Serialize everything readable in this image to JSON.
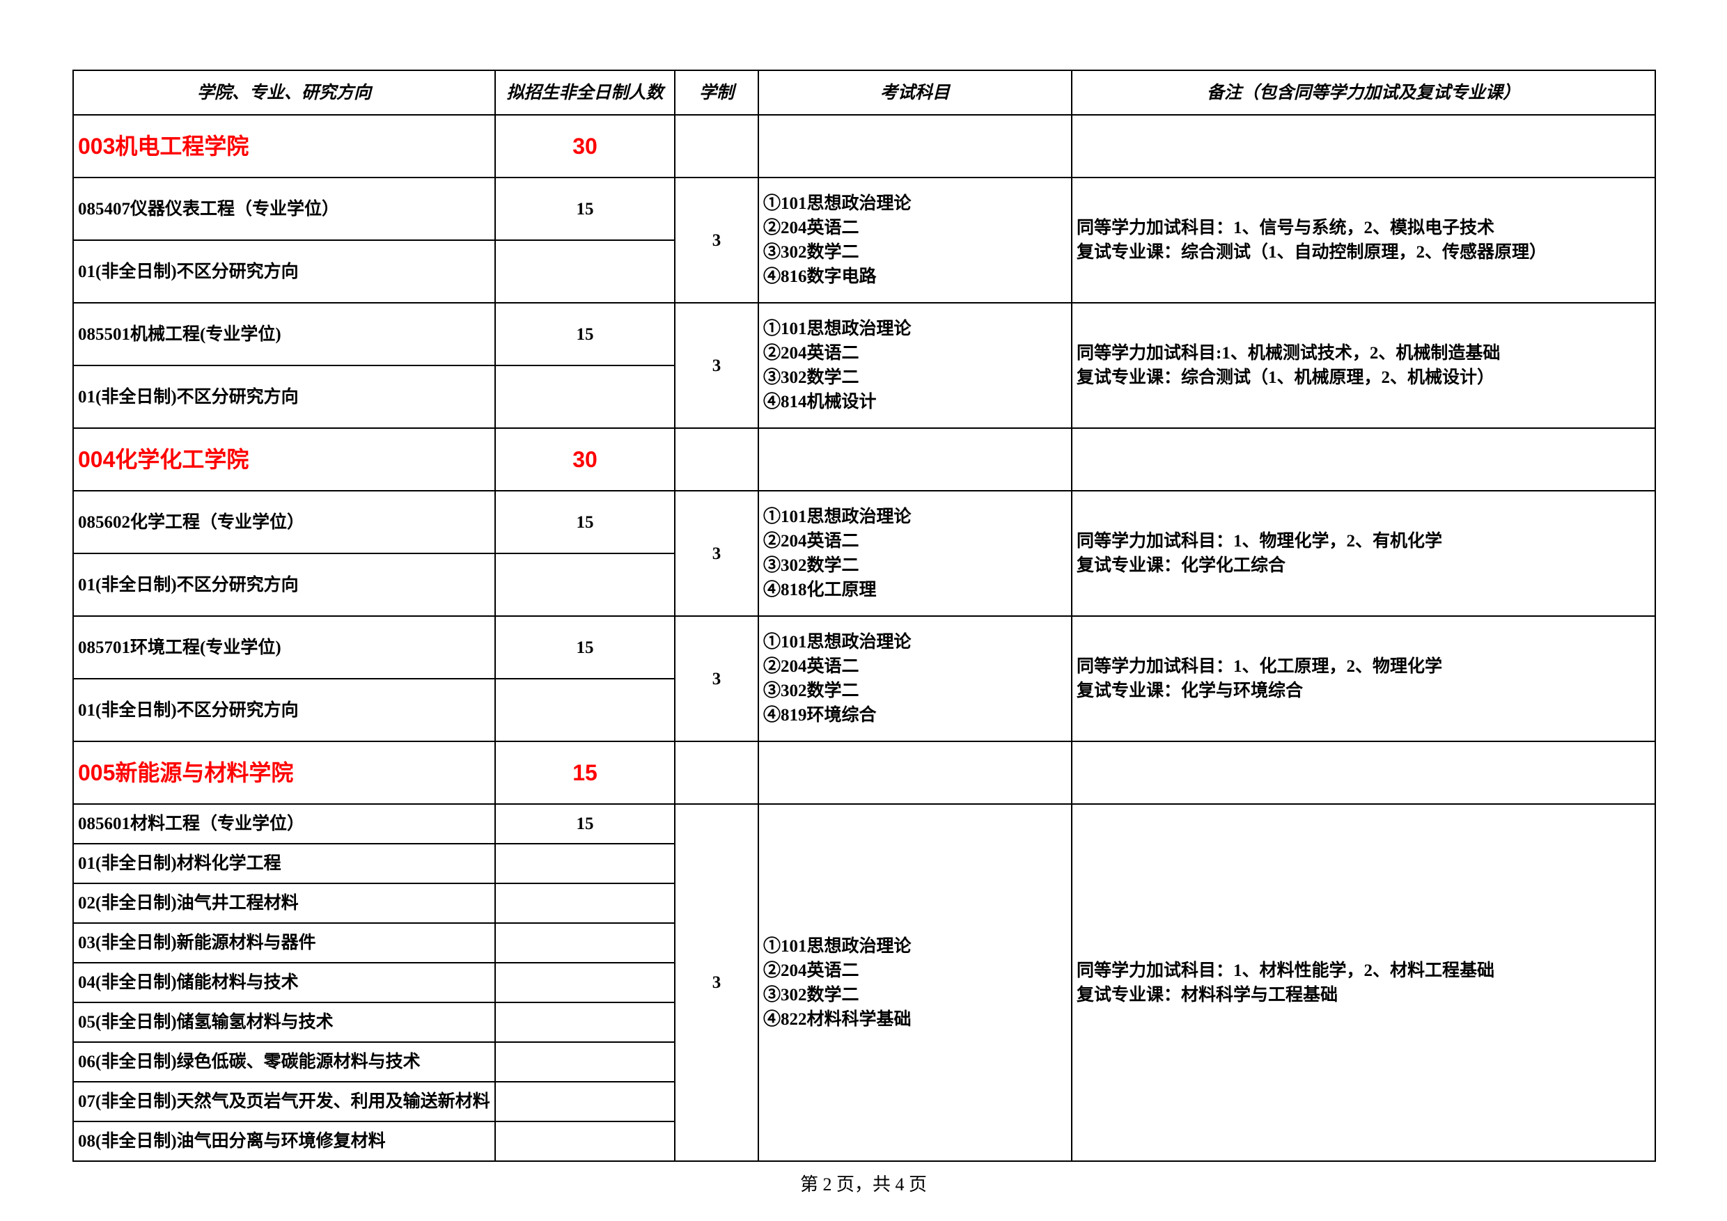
{
  "table": {
    "border_color": "#000000",
    "accent_color": "#ff0000",
    "background_color": "#ffffff",
    "headers": {
      "c1": "学院、专业、研究方向",
      "c2": "拟招生非全日制人数",
      "c3": "学制",
      "c4": "考试科目",
      "c5": "备注（包含同等学力加试及复试专业课）"
    },
    "colleges": [
      {
        "name": "003机电工程学院",
        "count": "30",
        "programs": [
          {
            "title": "085407仪器仪表工程（专业学位）",
            "count": "15",
            "duration": "3",
            "exam": "①101思想政治理论\n②204英语二\n③302数学二\n④816数字电路",
            "note": "同等学力加试科目：1、信号与系统，2、模拟电子技术\n复试专业课：综合测试（1、自动控制原理，2、传感器原理）",
            "directions": [
              "01(非全日制)不区分研究方向"
            ]
          },
          {
            "title": "085501机械工程(专业学位)",
            "count": "15",
            "duration": "3",
            "exam": "①101思想政治理论\n②204英语二\n③302数学二\n④814机械设计",
            "note": "同等学力加试科目:1、机械测试技术，2、机械制造基础\n复试专业课：综合测试（1、机械原理，2、机械设计）",
            "directions": [
              "01(非全日制)不区分研究方向"
            ]
          }
        ]
      },
      {
        "name": "004化学化工学院",
        "count": "30",
        "programs": [
          {
            "title": "085602化学工程（专业学位）",
            "count": "15",
            "duration": "3",
            "exam": "①101思想政治理论\n②204英语二\n③302数学二\n④818化工原理",
            "note": "同等学力加试科目：1、物理化学，2、有机化学\n复试专业课：化学化工综合",
            "directions": [
              "01(非全日制)不区分研究方向"
            ]
          },
          {
            "title": "085701环境工程(专业学位)",
            "count": "15",
            "duration": "3",
            "exam": "①101思想政治理论\n②204英语二\n③302数学二\n④819环境综合",
            "note": "同等学力加试科目：1、化工原理，2、物理化学\n复试专业课：化学与环境综合",
            "directions": [
              "01(非全日制)不区分研究方向"
            ]
          }
        ]
      },
      {
        "name": "005新能源与材料学院",
        "count": "15",
        "programs": [
          {
            "title": "085601材料工程（专业学位）",
            "count": "15",
            "duration": "3",
            "exam": "①101思想政治理论\n②204英语二\n③302数学二\n④822材料科学基础",
            "note": "同等学力加试科目：1、材料性能学，2、材料工程基础\n复试专业课：材料科学与工程基础",
            "directions": [
              "01(非全日制)材料化学工程",
              "02(非全日制)油气井工程材料",
              "03(非全日制)新能源材料与器件",
              "04(非全日制)储能材料与技术",
              "05(非全日制)储氢输氢材料与技术",
              "06(非全日制)绿色低碳、零碳能源材料与技术",
              "07(非全日制)天然气及页岩气开发、利用及输送新材料",
              "08(非全日制)油气田分离与环境修复材料"
            ]
          }
        ]
      }
    ]
  },
  "footer": "第 2 页，共 4 页"
}
